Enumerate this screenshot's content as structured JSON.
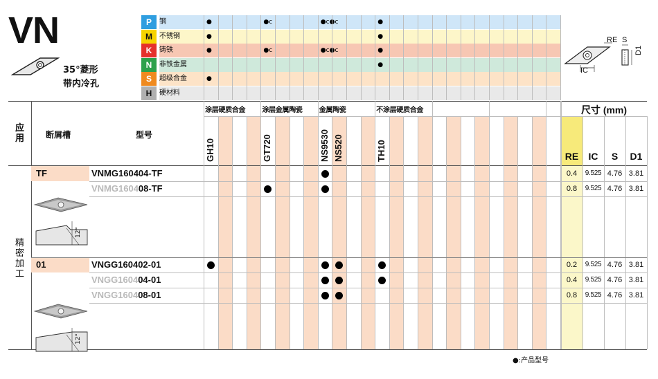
{
  "header": {
    "code": "VN",
    "shape_line1": "35°菱形",
    "shape_line2": "带内冷孔"
  },
  "materials": [
    {
      "letter": "P",
      "name": "钢",
      "color": "#2f9ee0",
      "bg": "#cfe6f8",
      "dots": [
        "●",
        "●c",
        "●c●c",
        "●"
      ]
    },
    {
      "letter": "M",
      "name": "不锈钢",
      "color": "#f6d300",
      "bg": "#fdf6c9",
      "dots": [
        "●",
        "",
        "",
        "●"
      ]
    },
    {
      "letter": "K",
      "name": "铸铁",
      "color": "#e5312b",
      "bg": "#f7c7b3",
      "dots": [
        "●",
        "●c",
        "●c●c",
        "●"
      ]
    },
    {
      "letter": "N",
      "name": "非铁金属",
      "color": "#2da14b",
      "bg": "#cfe9db",
      "dots": [
        "",
        "",
        "",
        "●"
      ]
    },
    {
      "letter": "S",
      "name": "超级合金",
      "color": "#ef8a1f",
      "bg": "#fde3c7",
      "dots": [
        "●",
        "",
        "",
        ""
      ]
    },
    {
      "letter": "H",
      "name": "硬材料",
      "color": "#b0b0b0",
      "bg": "#e9e9e9",
      "dots": [
        "",
        "",
        "",
        ""
      ]
    }
  ],
  "diagram_labels": {
    "re": "RE",
    "s": "S",
    "d1": "D1",
    "ic": "IC"
  },
  "columns": {
    "application": "应用",
    "chipbreaker": "断屑槽",
    "model": "型号",
    "groups": [
      "涂层硬质合金",
      "涂层金属陶瓷",
      "金属陶瓷",
      "不涂层硬质合金"
    ],
    "grades": [
      "GH10",
      "GT720",
      "NS9530",
      "NS520",
      "TH10"
    ],
    "dims_title": "尺寸 (mm)",
    "dims": [
      "RE",
      "IC",
      "S",
      "D1"
    ]
  },
  "application_finishing": "精密加工",
  "sections": [
    {
      "chipbreaker": "TF",
      "rows": [
        {
          "prefix": "VNMG160404-TF",
          "suffix": "",
          "dots": {
            "GH10": false,
            "GT720": false,
            "NS9530": true,
            "NS520": false,
            "TH10": false
          },
          "re": "0.4",
          "ic": "9.525",
          "s": "4.76",
          "d1": "3.81"
        },
        {
          "prefix": "VNMG1604",
          "suffix": "08-TF",
          "dots": {
            "GH10": false,
            "GT720": true,
            "NS9530": true,
            "NS520": false,
            "TH10": false
          },
          "re": "0.8",
          "ic": "9.525",
          "s": "4.76",
          "d1": "3.81"
        }
      ],
      "angle": "12°"
    },
    {
      "chipbreaker": "01",
      "rows": [
        {
          "prefix": "VNGG160402-01",
          "suffix": "",
          "dots": {
            "GH10": true,
            "GT720": false,
            "NS9530": true,
            "NS520": true,
            "TH10": true
          },
          "re": "0.2",
          "ic": "9.525",
          "s": "4.76",
          "d1": "3.81"
        },
        {
          "prefix": "VNGG1604",
          "suffix": "04-01",
          "dots": {
            "GH10": false,
            "GT720": false,
            "NS9530": true,
            "NS520": true,
            "TH10": true
          },
          "re": "0.4",
          "ic": "9.525",
          "s": "4.76",
          "d1": "3.81"
        },
        {
          "prefix": "VNGG1604",
          "suffix": "08-01",
          "dots": {
            "GH10": false,
            "GT720": false,
            "NS9530": true,
            "NS520": true,
            "TH10": false
          },
          "re": "0.8",
          "ic": "9.525",
          "s": "4.76",
          "d1": "3.81"
        }
      ],
      "angle": "12°"
    }
  ],
  "footnote": "●:产品型号",
  "colors": {
    "stripe": "#fbdcc7",
    "re_col": "#fbf7c9",
    "re_head": "#f7ea7a"
  }
}
